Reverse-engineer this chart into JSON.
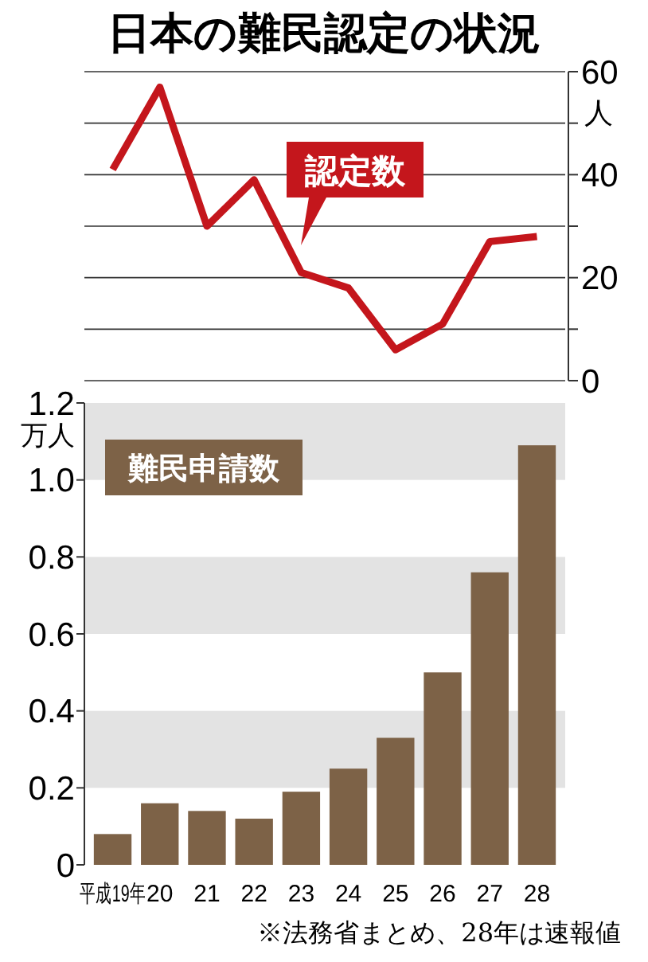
{
  "chart_data": [
    {
      "type": "line",
      "title": "日本の難民認定の状況",
      "ylabel": "人",
      "categories": [
        null,
        null,
        null,
        null,
        null,
        null,
        null,
        null,
        null,
        null
      ],
      "series": [
        {
          "name": "認定数",
          "color": "#c4161c",
          "values": [
            41,
            57,
            30,
            39,
            21,
            18,
            6,
            11,
            27,
            28
          ]
        }
      ],
      "ylim": [
        0,
        60
      ],
      "yticks": [
        0,
        {
          "value": 10,
          "label": null
        },
        20,
        {
          "value": 30,
          "label": null
        },
        40,
        {
          "value": 50,
          "label": null
        },
        60
      ],
      "grid": "y",
      "legend": false,
      "marker": "none",
      "line_style": "solid",
      "tick_labels": "y"
    },
    {
      "type": "bar",
      "ylabel": "万人",
      "categories": [
        "平成19年",
        "20",
        "21",
        "22",
        "23",
        "24",
        "25",
        "26",
        "27",
        "28"
      ],
      "series": [
        {
          "name": "難民申請数",
          "color": "#7d6247",
          "values": [
            0.08,
            0.16,
            0.14,
            0.12,
            0.19,
            0.25,
            0.33,
            0.5,
            0.76,
            1.09
          ]
        }
      ],
      "ylim": [
        0,
        1.2
      ],
      "yticks": [
        {
          "value": 0,
          "label": "0"
        },
        0.2,
        0.4,
        0.6,
        0.8,
        {
          "value": 1,
          "label": "1.0"
        },
        1.2
      ],
      "bands": [
        {
          "axis": "y",
          "from": 0.2,
          "to": 0.4,
          "color": "#e3e3e3"
        },
        {
          "axis": "y",
          "from": 0.6,
          "to": 0.8,
          "color": "#e3e3e3"
        },
        {
          "axis": "y",
          "from": 1.0,
          "to": 1.2,
          "color": "#e3e3e3"
        }
      ],
      "grid": false,
      "legend": false,
      "annotations": [
        "※法務省まとめ、28年は速報値"
      ]
    }
  ]
}
